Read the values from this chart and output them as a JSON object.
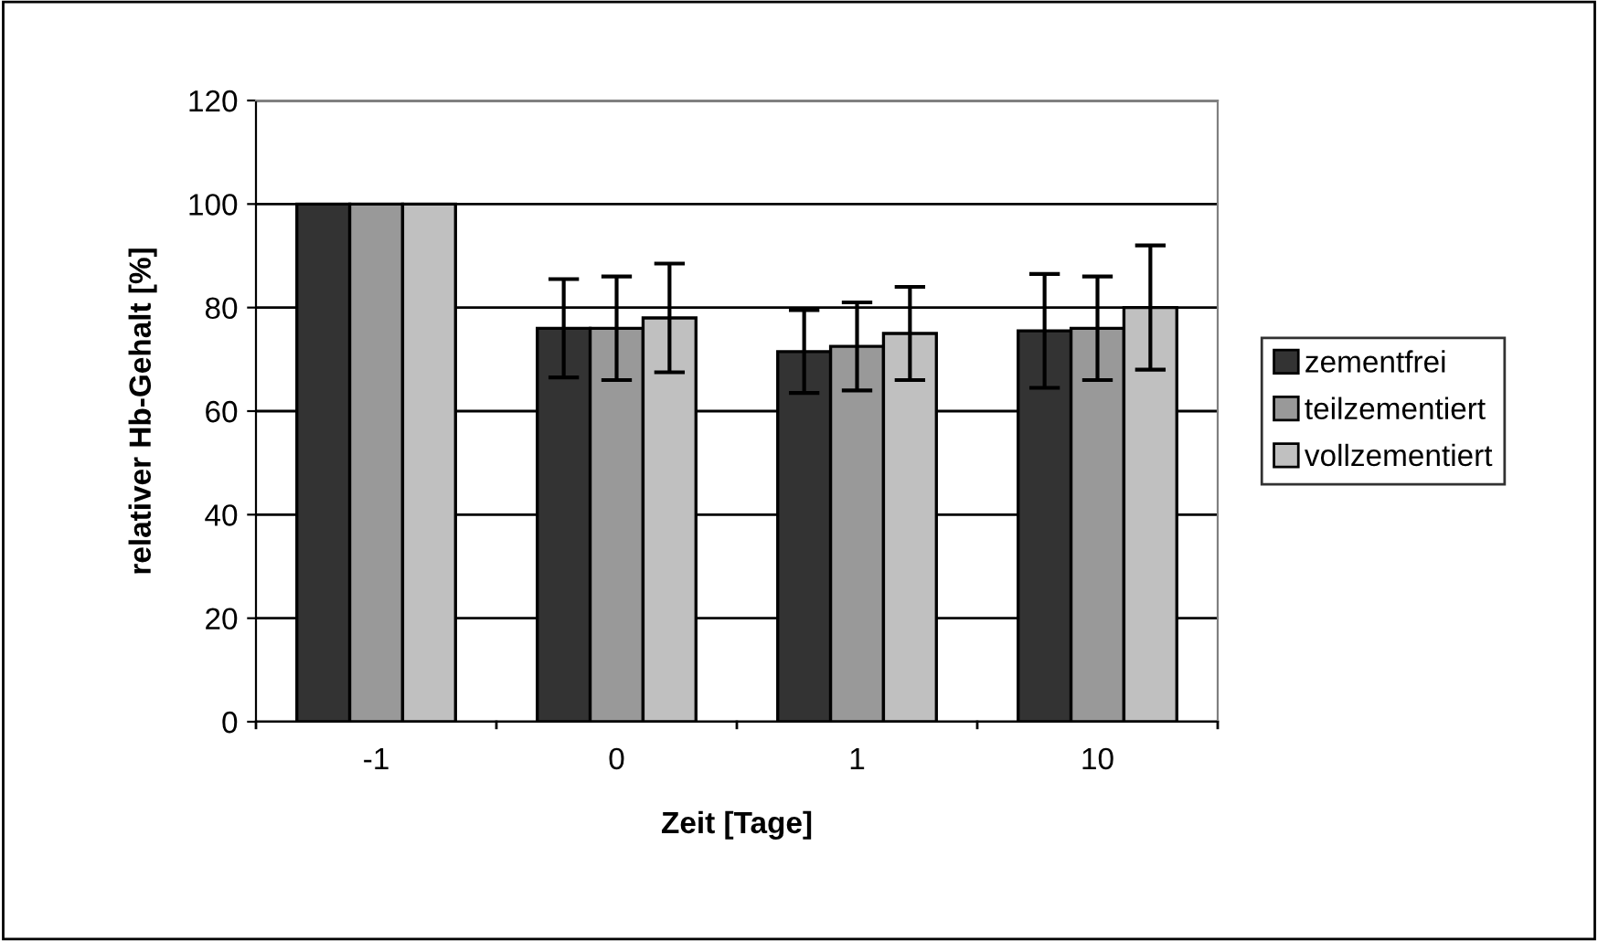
{
  "chart_data": {
    "type": "bar",
    "xlabel": "Zeit [Tage]",
    "ylabel": "relativer Hb-Gehalt [%]",
    "categories": [
      "-1",
      "0",
      "1",
      "10"
    ],
    "series": [
      {
        "name": "zementfrei",
        "color": "#333333",
        "values": [
          100,
          76,
          71.5,
          75.5
        ],
        "errors": [
          null,
          9.5,
          8,
          11
        ]
      },
      {
        "name": "teilzementiert",
        "color": "#999999",
        "values": [
          100,
          76,
          72.5,
          76
        ],
        "errors": [
          null,
          10,
          8.5,
          10
        ]
      },
      {
        "name": "vollzementiert",
        "color": "#c0c0c0",
        "values": [
          100,
          78,
          75,
          80
        ],
        "errors": [
          null,
          10.5,
          9,
          12
        ]
      }
    ],
    "ylim": [
      0,
      120
    ],
    "yticks": [
      0,
      20,
      40,
      60,
      80,
      100,
      120
    ],
    "grid": "y",
    "legend": "right"
  }
}
